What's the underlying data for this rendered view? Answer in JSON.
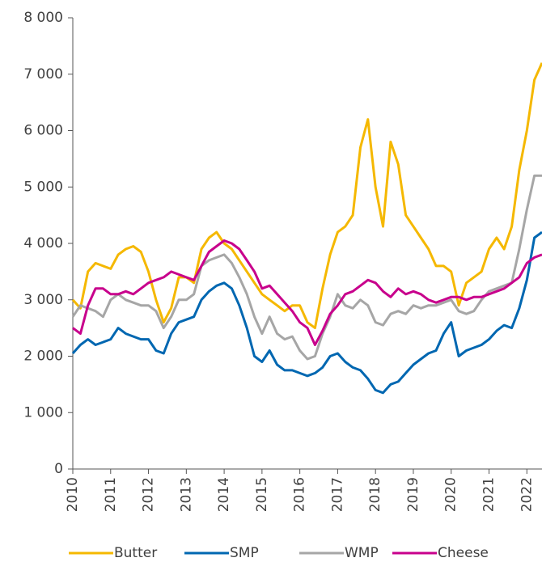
{
  "chart_data": {
    "type": "line",
    "x": [
      2010.0,
      2010.2,
      2010.4,
      2010.6,
      2010.8,
      2011.0,
      2011.2,
      2011.4,
      2011.6,
      2011.8,
      2012.0,
      2012.2,
      2012.4,
      2012.6,
      2012.8,
      2013.0,
      2013.2,
      2013.4,
      2013.6,
      2013.8,
      2014.0,
      2014.2,
      2014.4,
      2014.6,
      2014.8,
      2015.0,
      2015.2,
      2015.4,
      2015.6,
      2015.8,
      2016.0,
      2016.2,
      2016.4,
      2016.6,
      2016.8,
      2017.0,
      2017.2,
      2017.4,
      2017.6,
      2017.8,
      2018.0,
      2018.2,
      2018.4,
      2018.6,
      2018.8,
      2019.0,
      2019.2,
      2019.4,
      2019.6,
      2019.8,
      2020.0,
      2020.2,
      2020.4,
      2020.6,
      2020.8,
      2021.0,
      2021.2,
      2021.4,
      2021.6,
      2021.8,
      2022.0,
      2022.2,
      2022.4
    ],
    "series": [
      {
        "name": "Butter",
        "color": "#f5b800",
        "values": [
          3000,
          2850,
          3500,
          3650,
          3600,
          3550,
          3800,
          3900,
          3950,
          3850,
          3500,
          3000,
          2600,
          2850,
          3400,
          3400,
          3300,
          3900,
          4100,
          4200,
          4000,
          3900,
          3700,
          3500,
          3300,
          3100,
          3000,
          2900,
          2800,
          2900,
          2900,
          2600,
          2500,
          3200,
          3800,
          4200,
          4300,
          4500,
          5700,
          6200,
          5000,
          4300,
          5800,
          5400,
          4500,
          4300,
          4100,
          3900,
          3600,
          3600,
          3500,
          2900,
          3300,
          3400,
          3500,
          3900,
          4100,
          3900,
          4300,
          5300,
          6000,
          6900,
          7200
        ]
      },
      {
        "name": "SMP",
        "color": "#0067b1",
        "values": [
          2050,
          2200,
          2300,
          2200,
          2250,
          2300,
          2500,
          2400,
          2350,
          2300,
          2300,
          2100,
          2050,
          2400,
          2600,
          2650,
          2700,
          3000,
          3150,
          3250,
          3300,
          3200,
          2900,
          2500,
          2000,
          1900,
          2100,
          1850,
          1750,
          1750,
          1700,
          1650,
          1700,
          1800,
          2000,
          2050,
          1900,
          1800,
          1750,
          1600,
          1400,
          1350,
          1500,
          1550,
          1700,
          1850,
          1950,
          2050,
          2100,
          2400,
          2600,
          2000,
          2100,
          2150,
          2200,
          2300,
          2450,
          2550,
          2500,
          2850,
          3350,
          4100,
          4200
        ]
      },
      {
        "name": "WMP",
        "color": "#a6a6a6",
        "values": [
          2700,
          2900,
          2850,
          2800,
          2700,
          3000,
          3100,
          3000,
          2950,
          2900,
          2900,
          2800,
          2500,
          2700,
          3000,
          3000,
          3100,
          3600,
          3700,
          3750,
          3800,
          3650,
          3400,
          3100,
          2700,
          2400,
          2700,
          2400,
          2300,
          2350,
          2100,
          1950,
          2000,
          2400,
          2700,
          3100,
          2900,
          2850,
          3000,
          2900,
          2600,
          2550,
          2750,
          2800,
          2750,
          2900,
          2850,
          2900,
          2900,
          2950,
          3000,
          2800,
          2750,
          2800,
          3000,
          3150,
          3200,
          3250,
          3300,
          3900,
          4600,
          5200,
          5200
        ]
      },
      {
        "name": "Cheese",
        "color": "#c8008c",
        "values": [
          2500,
          2400,
          2900,
          3200,
          3200,
          3100,
          3100,
          3150,
          3100,
          3200,
          3300,
          3350,
          3400,
          3500,
          3450,
          3400,
          3350,
          3600,
          3850,
          3950,
          4050,
          4000,
          3900,
          3700,
          3500,
          3200,
          3250,
          3100,
          2950,
          2800,
          2600,
          2500,
          2200,
          2450,
          2750,
          2900,
          3100,
          3150,
          3250,
          3350,
          3300,
          3150,
          3050,
          3200,
          3100,
          3150,
          3100,
          3000,
          2950,
          3000,
          3050,
          3050,
          3000,
          3050,
          3050,
          3100,
          3150,
          3200,
          3300,
          3400,
          3650,
          3750,
          3800
        ]
      }
    ],
    "xlim": [
      2010,
      2022.4
    ],
    "xticks": [
      2010,
      2011,
      2012,
      2013,
      2014,
      2015,
      2016,
      2017,
      2018,
      2019,
      2020,
      2021,
      2022
    ],
    "ylim": [
      0,
      8000
    ],
    "yticks": [
      0,
      {
        "value": 1000,
        "label": "1 000"
      },
      {
        "value": 2000,
        "label": "2 000"
      },
      {
        "value": 3000,
        "label": "3 000"
      },
      {
        "value": 4000,
        "label": "4 000"
      },
      {
        "value": 5000,
        "label": "5 000"
      },
      {
        "value": 6000,
        "label": "6 000"
      },
      {
        "value": 7000,
        "label": "7 000"
      },
      {
        "value": 8000,
        "label": "8 000"
      }
    ]
  }
}
